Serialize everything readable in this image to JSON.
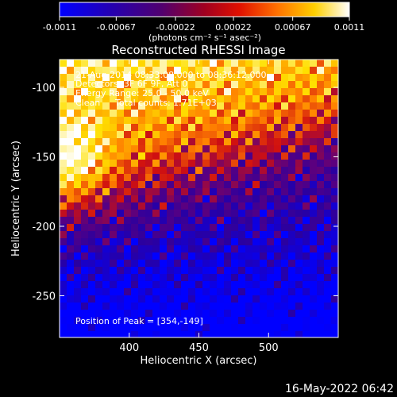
{
  "colorbar": {
    "ticks": [
      "-0.0011",
      "-0.00067",
      "-0.00022",
      "0.00022",
      "0.00067",
      "0.0011"
    ],
    "tick_values": [
      -0.0011,
      -0.00067,
      -0.00022,
      0.00022,
      0.00067,
      0.0011
    ],
    "range": [
      -0.0011,
      0.0011
    ],
    "units_label": "(photons cm⁻² s⁻¹ asec⁻²)"
  },
  "annotations": {
    "time_range": "21-Aug-2014 08:33:08.000 to 08:36:12.000",
    "detectors": "Detectors: 3F 6F 9F, Att 0",
    "energy": "Energy Range: 25.0 - 50.0 keV",
    "clean_label": "Clean",
    "total_counts": "Total counts: 1.71E+03",
    "peak": "Position of Peak = [354,-149]"
  },
  "footer": {
    "date": "16-May-2022 06:42"
  },
  "chart_data": {
    "type": "heatmap",
    "title": "Reconstructed RHESSI Image",
    "xlabel": "Heliocentric X (arcsec)",
    "ylabel": "Heliocentric Y (arcsec)",
    "xlim": [
      350,
      550
    ],
    "ylim": [
      -280,
      -80
    ],
    "xticks": [
      "400",
      "450",
      "500"
    ],
    "xtick_values": [
      400,
      450,
      500
    ],
    "yticks": [
      "-100",
      "-150",
      "-200",
      "-250"
    ],
    "ytick_values": [
      -100,
      -150,
      -200,
      -250
    ],
    "peak": [
      354,
      -149
    ],
    "colormap": [
      "#0000ff",
      "#2a00a0",
      "#5a0080",
      "#d01010",
      "#ff8000",
      "#ffe000",
      "#ffffff"
    ]
  }
}
